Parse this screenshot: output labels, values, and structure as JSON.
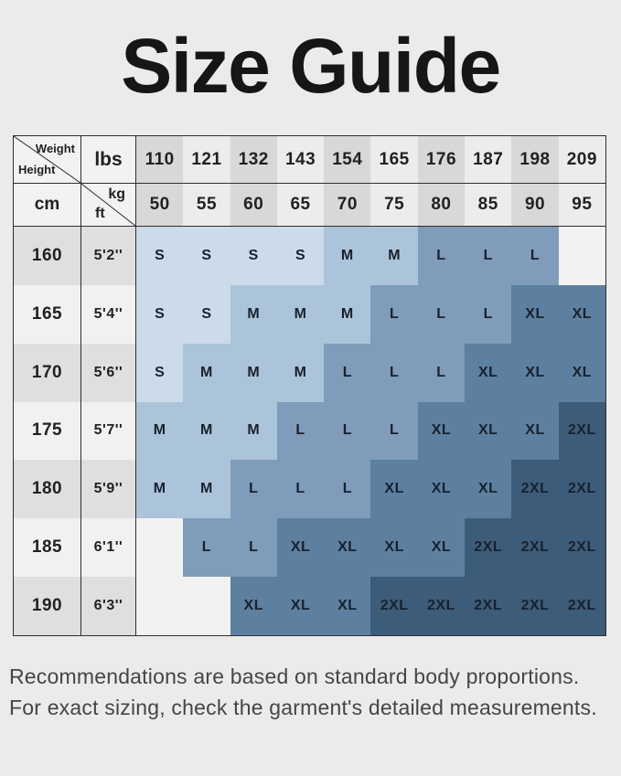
{
  "page": {
    "title": "Size Guide"
  },
  "chart_data": {
    "type": "table",
    "title": "Size Guide",
    "corner": {
      "top_right_label": "Weight",
      "bottom_left_label": "Height"
    },
    "units": {
      "weight_row1": "lbs",
      "weight_row2_top": "kg",
      "weight_row2_bottom": "ft",
      "height_col": "cm"
    },
    "weight_lbs": [
      "110",
      "121",
      "132",
      "143",
      "154",
      "165",
      "176",
      "187",
      "198",
      "209"
    ],
    "weight_kg": [
      "50",
      "55",
      "60",
      "65",
      "70",
      "75",
      "80",
      "85",
      "90",
      "95"
    ],
    "rows": [
      {
        "cm": "160",
        "ft": "5'2''",
        "sizes": [
          "S",
          "S",
          "S",
          "S",
          "M",
          "M",
          "L",
          "L",
          "L",
          ""
        ]
      },
      {
        "cm": "165",
        "ft": "5'4''",
        "sizes": [
          "S",
          "S",
          "M",
          "M",
          "M",
          "L",
          "L",
          "L",
          "XL",
          "XL"
        ]
      },
      {
        "cm": "170",
        "ft": "5'6''",
        "sizes": [
          "S",
          "M",
          "M",
          "M",
          "L",
          "L",
          "L",
          "XL",
          "XL",
          "XL"
        ]
      },
      {
        "cm": "175",
        "ft": "5'7''",
        "sizes": [
          "M",
          "M",
          "M",
          "L",
          "L",
          "L",
          "XL",
          "XL",
          "XL",
          "2XL"
        ]
      },
      {
        "cm": "180",
        "ft": "5'9''",
        "sizes": [
          "M",
          "M",
          "L",
          "L",
          "L",
          "XL",
          "XL",
          "XL",
          "2XL",
          "2XL"
        ]
      },
      {
        "cm": "185",
        "ft": "6'1''",
        "sizes": [
          "",
          "L",
          "L",
          "XL",
          "XL",
          "XL",
          "XL",
          "2XL",
          "2XL",
          "2XL"
        ]
      },
      {
        "cm": "190",
        "ft": "6'3''",
        "sizes": [
          "",
          "",
          "XL",
          "XL",
          "XL",
          "2XL",
          "2XL",
          "2XL",
          "2XL",
          "2XL"
        ]
      }
    ],
    "size_legend": [
      "S",
      "M",
      "L",
      "XL",
      "2XL"
    ],
    "colors": {
      "S": "#cbdbea",
      "M": "#acc4da",
      "L": "#7f9cba",
      "XL": "#5d80a0",
      "2XL": "#3d5c7a",
      "empty": "#f2f2f2"
    }
  },
  "footer": {
    "line1": "Recommendations are based on standard body proportions.",
    "line2": "For exact sizing, check the garment's detailed measurements."
  }
}
